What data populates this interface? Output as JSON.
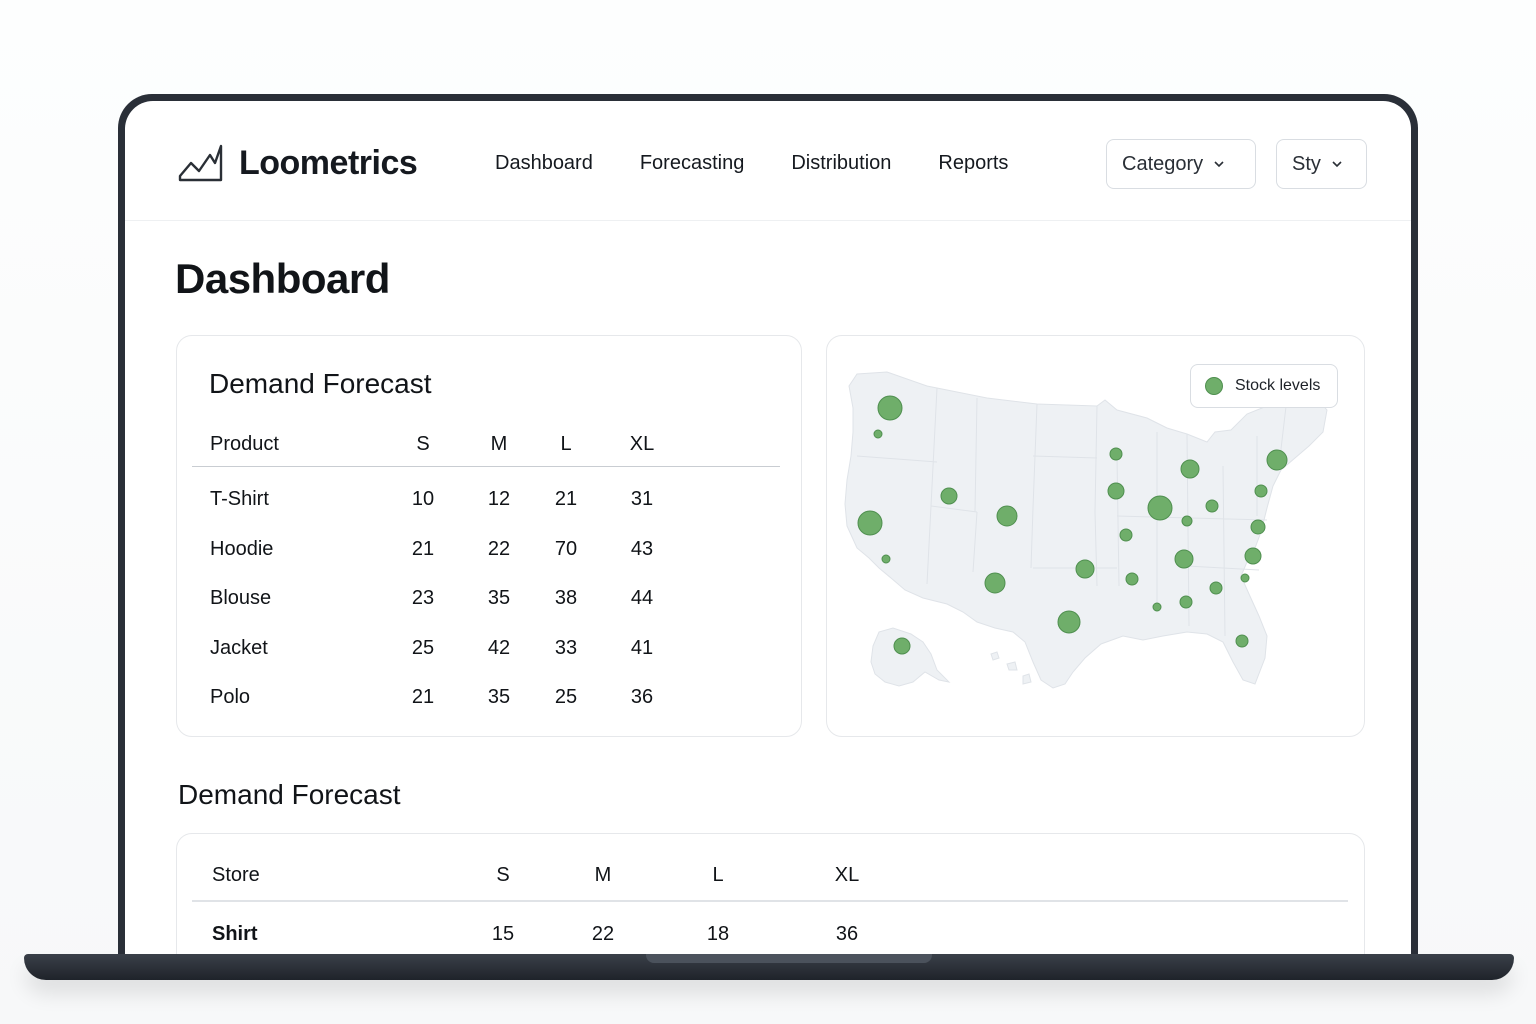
{
  "app": {
    "name": "Loometrics"
  },
  "nav": {
    "items": [
      {
        "label": "Dashboard"
      },
      {
        "label": "Forecasting"
      },
      {
        "label": "Distribution"
      },
      {
        "label": "Reports"
      }
    ]
  },
  "filters": {
    "category": {
      "value": "Category"
    },
    "style": {
      "value": "Sty"
    }
  },
  "page": {
    "title": "Dashboard"
  },
  "forecast_card": {
    "title": "Demand Forecast",
    "columns": [
      "Product",
      "S",
      "M",
      "L",
      "XL"
    ],
    "rows": [
      {
        "product": "T-Shirt",
        "values": [
          "10",
          "12",
          "21",
          "31"
        ]
      },
      {
        "product": "Hoodie",
        "values": [
          "21",
          "22",
          "70",
          "43"
        ]
      },
      {
        "product": "Blouse",
        "values": [
          "23",
          "35",
          "38",
          "44"
        ]
      },
      {
        "product": "Jacket",
        "values": [
          "25",
          "42",
          "33",
          "41"
        ]
      },
      {
        "product": "Polo",
        "values": [
          "21",
          "35",
          "25",
          "36"
        ]
      }
    ]
  },
  "map_card": {
    "legend_label": "Stock levels",
    "marker_color": "#6fae6a",
    "land_color": "#eef1f4"
  },
  "store_section": {
    "title": "Demand Forecast",
    "columns": [
      "Store",
      "S",
      "M",
      "L",
      "XL"
    ],
    "rows": [
      {
        "store": "Shirt",
        "values": [
          "15",
          "22",
          "18",
          "36"
        ]
      }
    ]
  },
  "icons": {
    "logo": "line-chart-logo-icon",
    "dropdown": "chevron-down-icon"
  }
}
